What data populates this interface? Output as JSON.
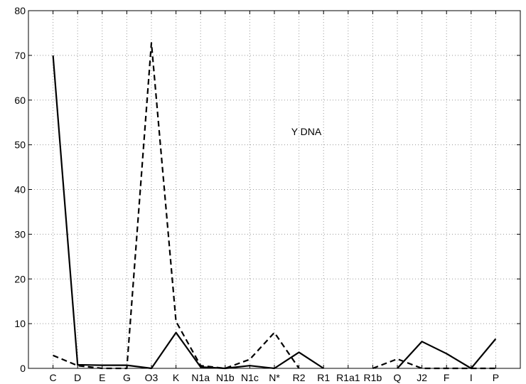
{
  "chart_data": {
    "type": "line",
    "categories": [
      "C",
      "D",
      "E",
      "G",
      "O3",
      "K",
      "N1a",
      "N1b",
      "N1c",
      "N*",
      "R2",
      "R1",
      "R1a1",
      "R1b",
      "Q",
      "J2",
      "F",
      "I",
      "P"
    ],
    "series": [
      {
        "style": "solid",
        "color": "#000000",
        "values": [
          70,
          0.8,
          0.7,
          0.7,
          0,
          8,
          0.3,
          0,
          0.6,
          0,
          3.6,
          0,
          null,
          null,
          0,
          6,
          3.3,
          0,
          6.6
        ]
      },
      {
        "style": "dashed",
        "color": "#000000",
        "values": [
          2.9,
          0.6,
          0,
          0,
          72.8,
          10.5,
          0.6,
          0,
          2,
          8,
          0,
          null,
          null,
          0,
          2.1,
          0,
          0,
          0,
          0
        ]
      }
    ],
    "yticks": [
      "0",
      "10",
      "20",
      "30",
      "40",
      "50",
      "60",
      "70",
      "80"
    ],
    "ylim": [
      0,
      80
    ],
    "grid": true,
    "annotation": {
      "text": "Y DNA",
      "x_index": 10.3,
      "y": 53
    }
  }
}
